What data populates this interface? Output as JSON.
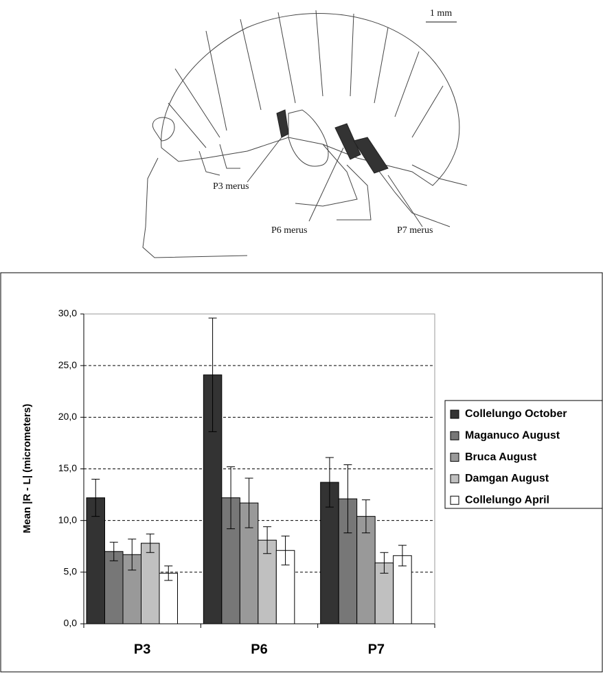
{
  "illustration": {
    "scale_bar": "1 mm",
    "labels": [
      "P3 merus",
      "P6 merus",
      "P7 merus"
    ]
  },
  "chart_data": {
    "type": "bar",
    "y_label": "Mean |R - L| (micrometers)",
    "categories": [
      "P3",
      "P6",
      "P7"
    ],
    "series": [
      {
        "name": "Collelungo October",
        "color": "#333333",
        "values": [
          12.2,
          24.1,
          13.7
        ],
        "errors": [
          1.8,
          5.5,
          2.4
        ]
      },
      {
        "name": "Maganuco August",
        "color": "#777777",
        "values": [
          7.0,
          12.2,
          12.1
        ],
        "errors": [
          0.9,
          3.0,
          3.3
        ]
      },
      {
        "name": "Bruca August",
        "color": "#999999",
        "values": [
          6.7,
          11.7,
          10.4
        ],
        "errors": [
          1.5,
          2.4,
          1.6
        ]
      },
      {
        "name": "Damgan August",
        "color": "#c0c0c0",
        "values": [
          7.8,
          8.1,
          5.9
        ],
        "errors": [
          0.9,
          1.3,
          1.0
        ]
      },
      {
        "name": "Collelungo April",
        "color": "#ffffff",
        "values": [
          4.9,
          7.1,
          6.6
        ],
        "errors": [
          0.7,
          1.4,
          1.0
        ]
      }
    ],
    "ylim": [
      0,
      30
    ],
    "yticks": [
      {
        "value": 0,
        "label": "0,0"
      },
      {
        "value": 5,
        "label": "5,0"
      },
      {
        "value": 10,
        "label": "10,0"
      },
      {
        "value": 15,
        "label": "15,0"
      },
      {
        "value": 20,
        "label": "20,0"
      },
      {
        "value": 25,
        "label": "25,0"
      },
      {
        "value": 30,
        "label": "30,0"
      }
    ],
    "grid": true,
    "legend": "right"
  }
}
